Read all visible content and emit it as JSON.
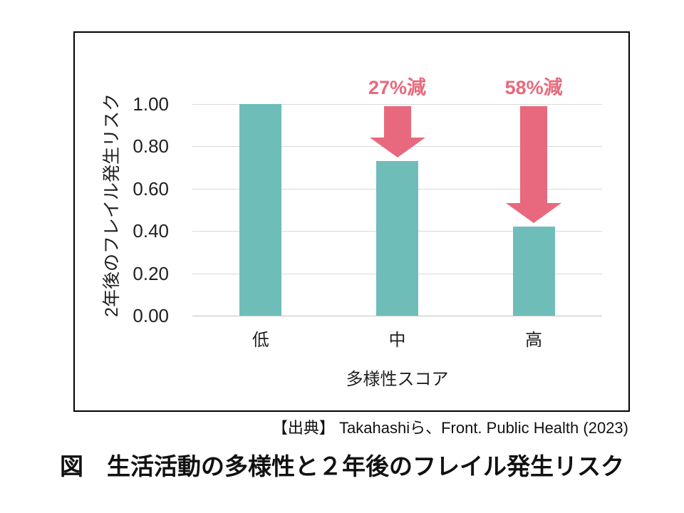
{
  "page": {
    "background": "#ffffff",
    "source_citation": "【出典】 Takahashiら、Front. Public Health (2023)",
    "figure_caption": "図　生活活動の多様性と２年後のフレイル発生リスク"
  },
  "chart": {
    "y_axis_title": "2年後のフレイル発生リスク",
    "x_axis_title": "多様性スコア",
    "y_ticks": [
      "1.00",
      "0.80",
      "0.60",
      "0.40",
      "0.20",
      "0.00"
    ],
    "colors": {
      "bar": "#6FBDB8",
      "arrow": "#E8697D",
      "annotation_text": "#E8697D",
      "gridline": "#D9D9D9",
      "axis_line": "#BFBFBF",
      "frame_border": "#000000",
      "text": "#1F1F1F"
    }
  },
  "chart_data": {
    "type": "bar",
    "categories": [
      "低",
      "中",
      "高"
    ],
    "values": [
      1.0,
      0.73,
      0.42
    ],
    "title": "図　生活活動の多様性と２年後のフレイル発生リスク",
    "xlabel": "多様性スコア",
    "ylabel": "2年後のフレイル発生リスク",
    "ylim": [
      0,
      1.0
    ],
    "ytick_interval": 0.2,
    "grid": true,
    "legend": false,
    "bar_color": "#6FBDB8",
    "annotations": [
      {
        "text": "27%減",
        "category": "中",
        "shape": "down-arrow"
      },
      {
        "text": "58%減",
        "category": "高",
        "shape": "down-arrow"
      }
    ],
    "source": "【出典】 Takahashiら、Front. Public Health (2023)"
  }
}
